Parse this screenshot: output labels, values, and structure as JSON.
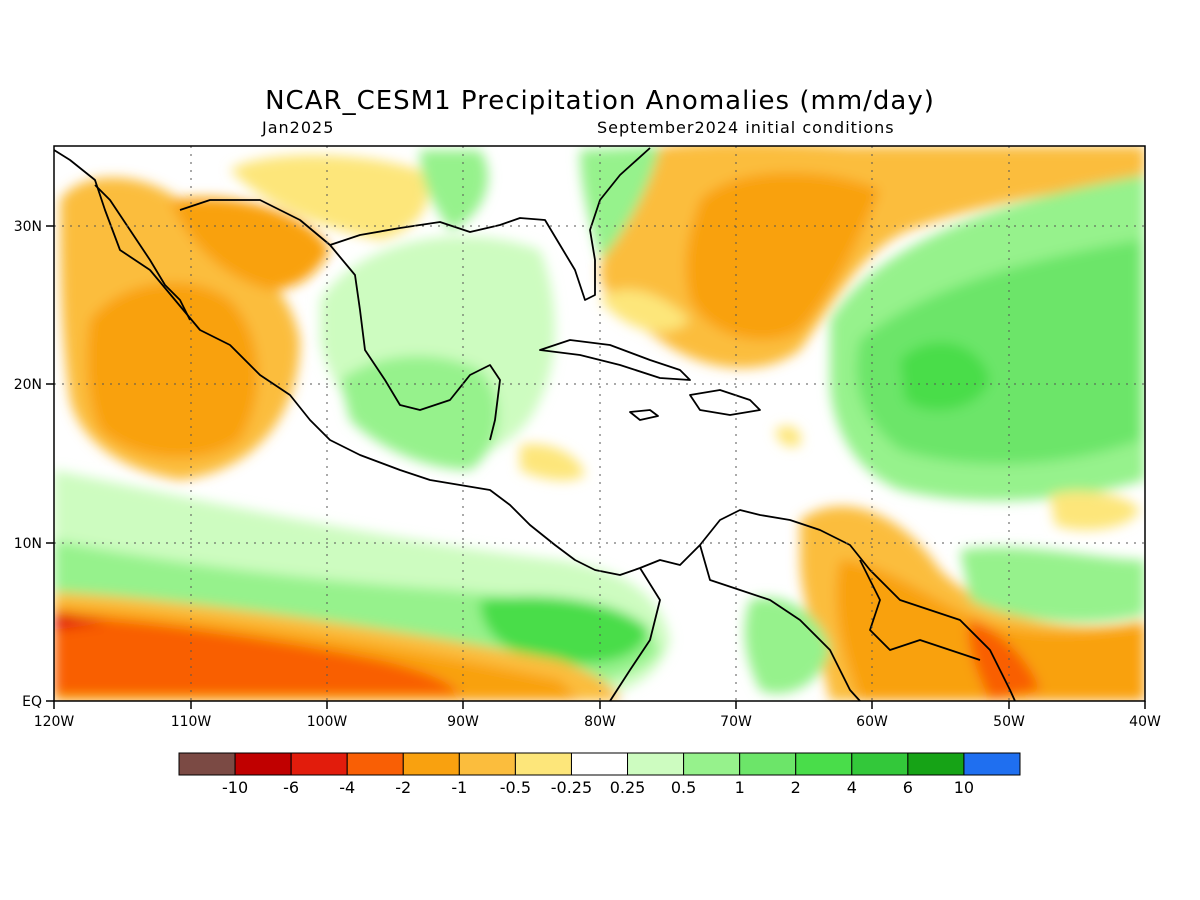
{
  "title": "NCAR_CESM1 Precipitation Anomalies (mm/day)",
  "subtitle_left": "Jan2025",
  "subtitle_right": "September2024 initial conditions",
  "map": {
    "lat_labels": [
      "30N",
      "20N",
      "10N",
      "EQ"
    ],
    "lon_labels": [
      "120W",
      "110W",
      "100W",
      "90W",
      "80W",
      "70W",
      "60W",
      "50W",
      "40W"
    ],
    "grid": "dotted"
  },
  "colorbar": {
    "colors": [
      "#7b4a44",
      "#c00000",
      "#e21c0c",
      "#f95f05",
      "#f9a10f",
      "#fbbd3d",
      "#fde67a",
      "#ffffff",
      "#cdfcc0",
      "#96f28c",
      "#6ce569",
      "#49dd4a",
      "#33c83a",
      "#16a316",
      "#1f6ff0"
    ],
    "labels": [
      "-10",
      "-6",
      "-4",
      "-2",
      "-1",
      "-0.5",
      "-0.25",
      "0.25",
      "0.5",
      "1",
      "2",
      "4",
      "6",
      "10"
    ]
  }
}
